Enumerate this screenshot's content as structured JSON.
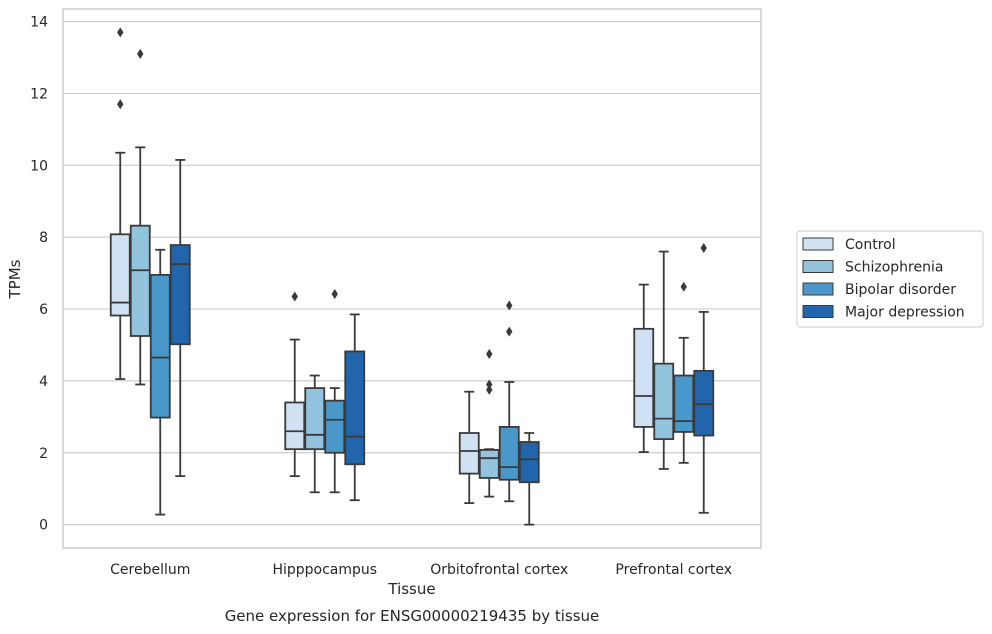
{
  "chart_data": {
    "type": "box",
    "title": "",
    "caption": "Gene expression for ENSG00000219435 by tissue",
    "xlabel": "Tissue",
    "ylabel": "TPMs",
    "ylim": [
      -0.65,
      14.35
    ],
    "yticks": [
      0,
      2,
      4,
      6,
      8,
      10,
      12,
      14
    ],
    "grid": "horizontal",
    "legend_position": "right",
    "categories": [
      "Cerebellum",
      "Hipppocampus",
      "Orbitofrontal cortex",
      "Prefrontal cortex"
    ],
    "series": [
      {
        "name": "Control",
        "color": "#cfe1f2",
        "boxes": [
          {
            "whislo": 4.05,
            "q1": 5.82,
            "med": 6.18,
            "q3": 8.08,
            "whishi": 10.35,
            "fliers": [
              11.7,
              13.7
            ]
          },
          {
            "whislo": 1.35,
            "q1": 2.1,
            "med": 2.6,
            "q3": 3.4,
            "whishi": 5.15,
            "fliers": [
              6.35
            ]
          },
          {
            "whislo": 0.6,
            "q1": 1.42,
            "med": 2.05,
            "q3": 2.55,
            "whishi": 3.7,
            "fliers": []
          },
          {
            "whislo": 2.02,
            "q1": 2.72,
            "med": 3.58,
            "q3": 5.45,
            "whishi": 6.68,
            "fliers": []
          }
        ]
      },
      {
        "name": "Schizophrenia",
        "color": "#93c4de",
        "boxes": [
          {
            "whislo": 3.9,
            "q1": 5.25,
            "med": 7.08,
            "q3": 8.32,
            "whishi": 10.5,
            "fliers": [
              13.1
            ]
          },
          {
            "whislo": 0.9,
            "q1": 2.1,
            "med": 2.5,
            "q3": 3.8,
            "whishi": 4.15,
            "fliers": []
          },
          {
            "whislo": 0.78,
            "q1": 1.3,
            "med": 1.85,
            "q3": 2.08,
            "whishi": 2.1,
            "fliers": [
              3.75,
              3.9,
              4.75
            ]
          },
          {
            "whislo": 1.55,
            "q1": 2.38,
            "med": 2.95,
            "q3": 4.48,
            "whishi": 7.6,
            "fliers": []
          }
        ]
      },
      {
        "name": "Bipolar disorder",
        "color": "#4a98c9",
        "boxes": [
          {
            "whislo": 0.28,
            "q1": 2.98,
            "med": 4.65,
            "q3": 6.95,
            "whishi": 7.65,
            "fliers": []
          },
          {
            "whislo": 0.9,
            "q1": 2.0,
            "med": 2.92,
            "q3": 3.45,
            "whishi": 3.8,
            "fliers": [
              6.42
            ]
          },
          {
            "whislo": 0.65,
            "q1": 1.25,
            "med": 1.6,
            "q3": 2.72,
            "whishi": 3.97,
            "fliers": [
              5.37,
              6.1
            ]
          },
          {
            "whislo": 1.72,
            "q1": 2.58,
            "med": 2.88,
            "q3": 4.15,
            "whishi": 5.2,
            "fliers": [
              6.62
            ]
          }
        ]
      },
      {
        "name": "Major depression",
        "color": "#2166ac",
        "boxes": [
          {
            "whislo": 1.35,
            "q1": 5.02,
            "med": 7.25,
            "q3": 7.78,
            "whishi": 10.15,
            "fliers": []
          },
          {
            "whislo": 0.68,
            "q1": 1.68,
            "med": 2.45,
            "q3": 4.82,
            "whishi": 5.85,
            "fliers": []
          },
          {
            "whislo": 0.0,
            "q1": 1.18,
            "med": 1.82,
            "q3": 2.3,
            "whishi": 2.55,
            "fliers": []
          },
          {
            "whislo": 0.33,
            "q1": 2.48,
            "med": 3.35,
            "q3": 4.28,
            "whishi": 5.92,
            "fliers": [
              7.7
            ]
          }
        ]
      }
    ]
  }
}
